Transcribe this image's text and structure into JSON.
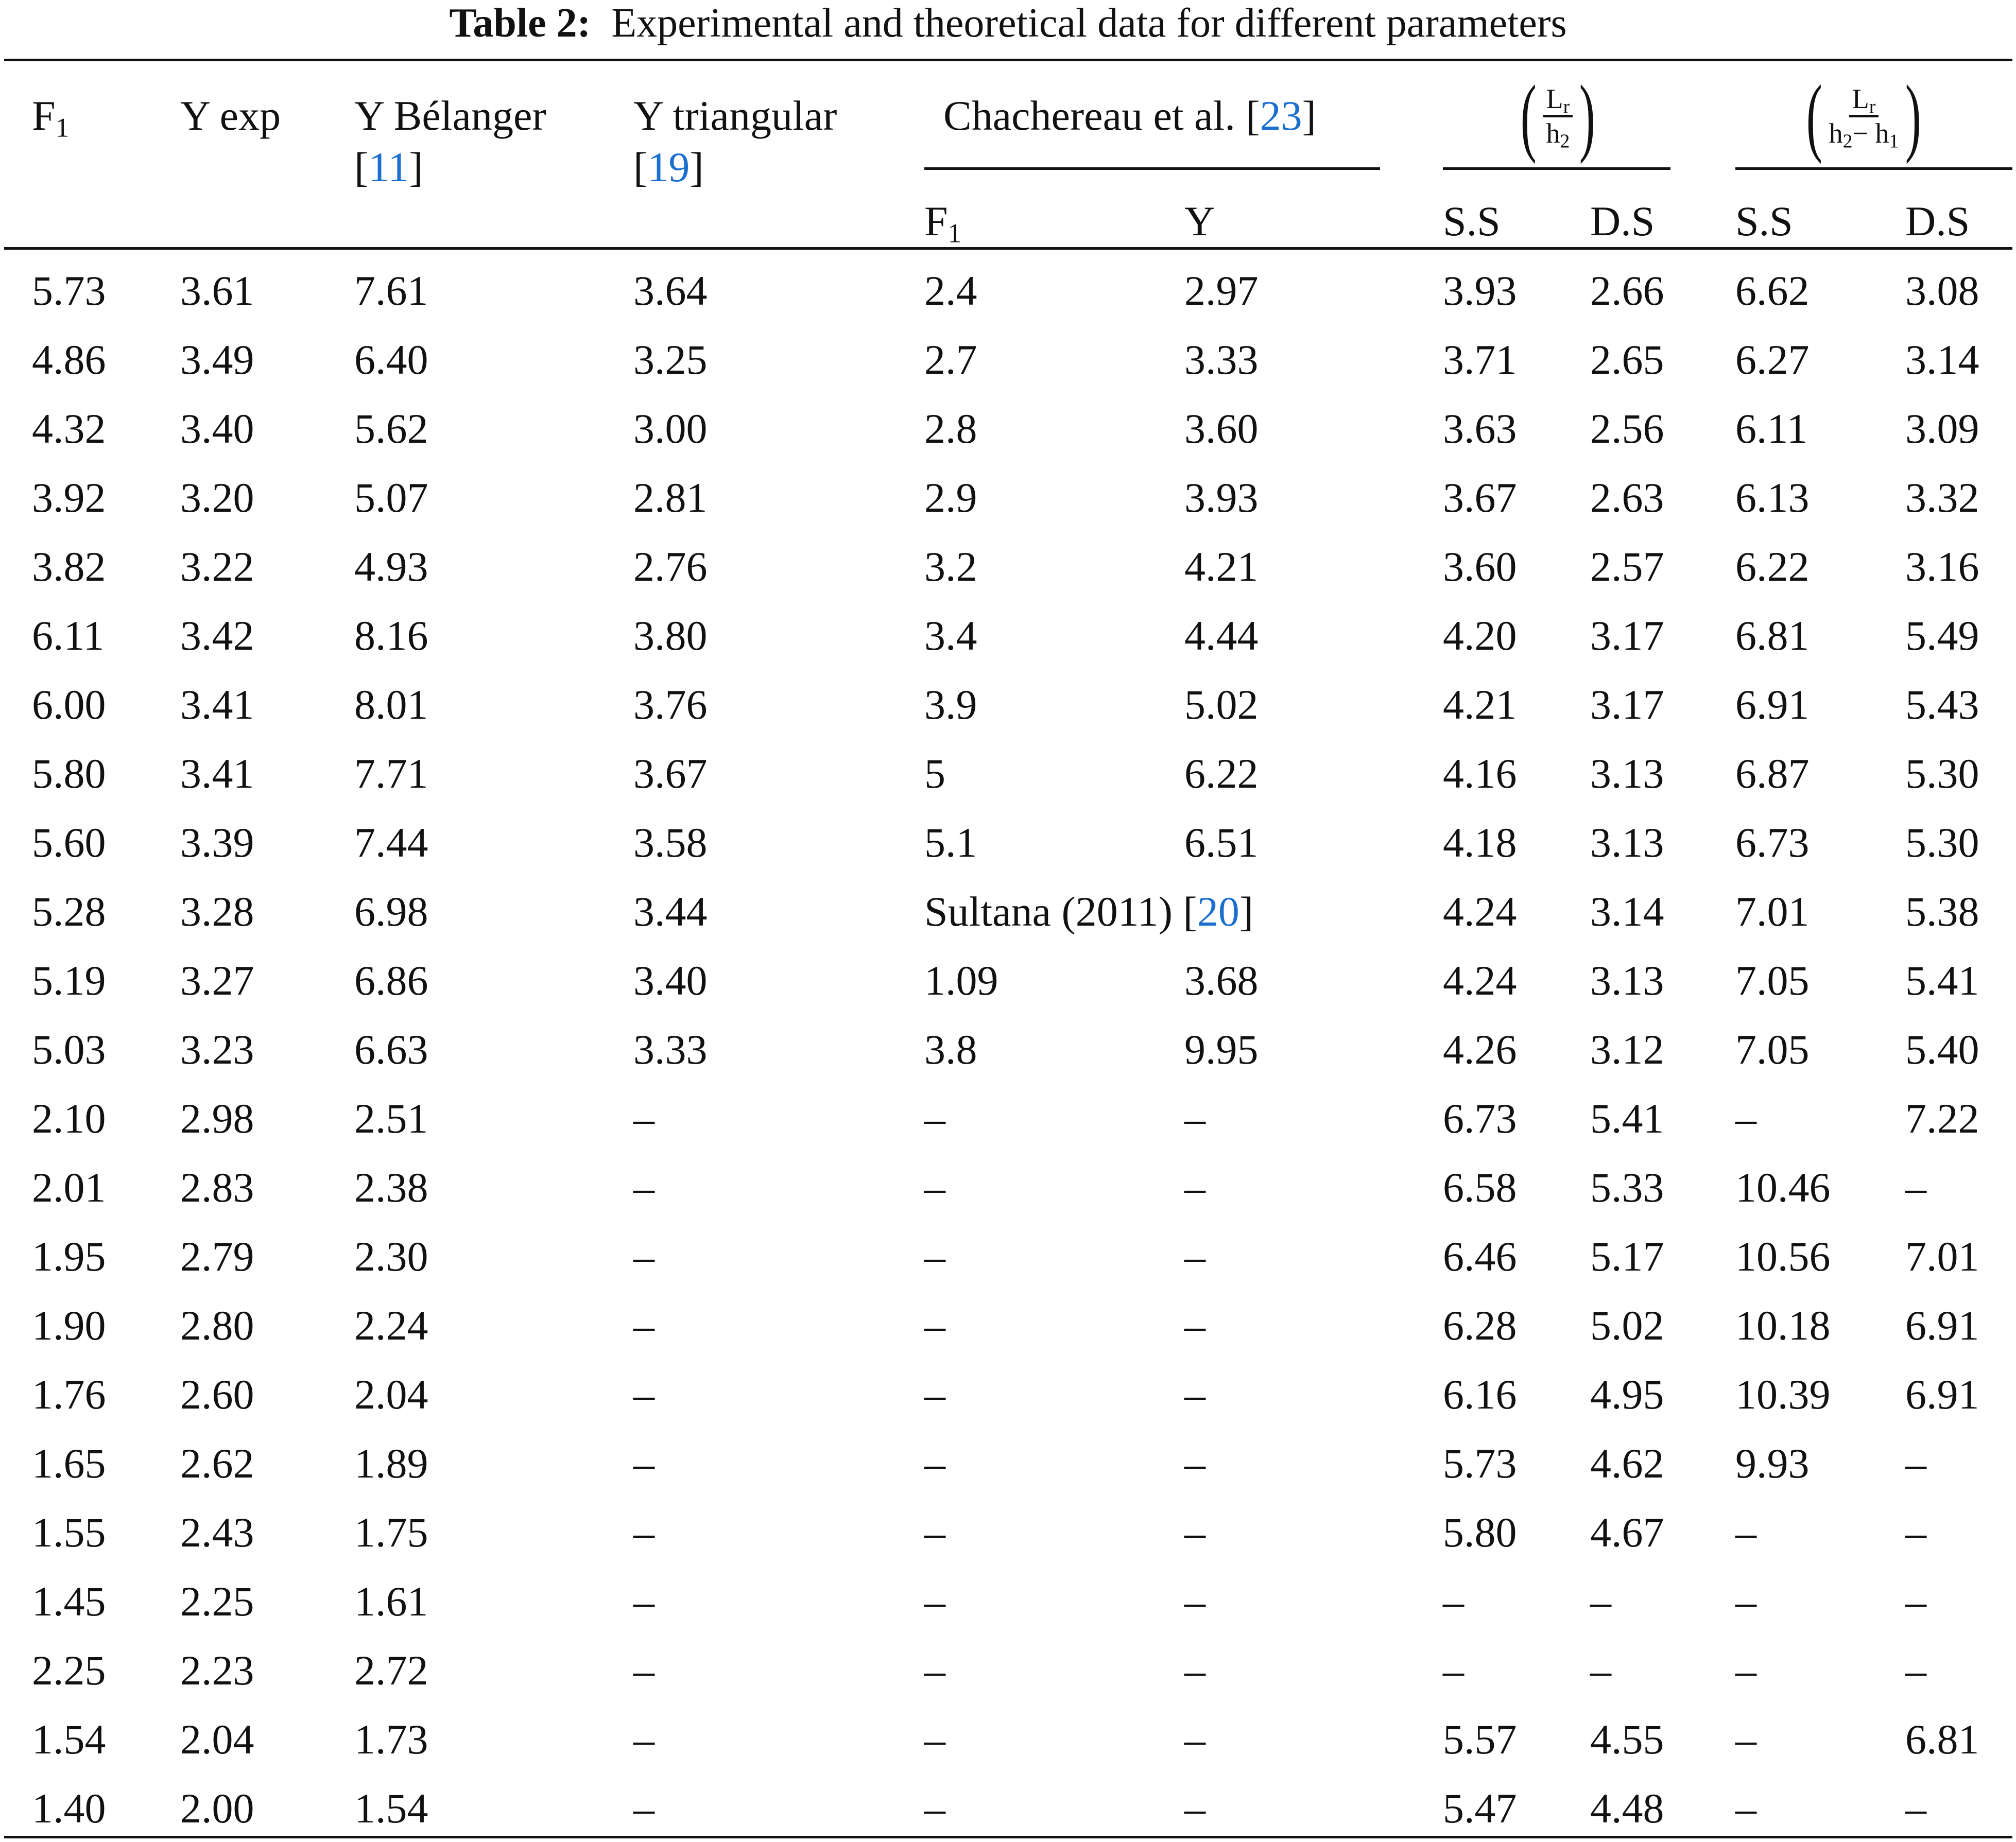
{
  "caption": {
    "label": "Table 2:",
    "text": "Experimental and theoretical data for different parameters"
  },
  "header": {
    "f1": "F",
    "f1_sub": "1",
    "y_exp": "Y exp",
    "y_belanger": "Y Bélanger",
    "y_belanger_ref": "11",
    "y_triangular": "Y triangular",
    "y_triangular_ref": "19",
    "chachereau": "Chachereau et al.",
    "chachereau_ref": "23",
    "chachereau_f1": "F",
    "chachereau_f1_sub": "1",
    "chachereau_y": "Y",
    "lr_h2": {
      "num": "L",
      "num_sub": "r",
      "den": "h",
      "den_sub": "2"
    },
    "lr_h2h1": {
      "num": "L",
      "num_sub": "r",
      "den_a": "h",
      "den_a_sub": "2",
      "minus": "− ",
      "den_b": "h",
      "den_b_sub": "1"
    },
    "ss": "S.S",
    "ds": "D.S"
  },
  "sultana": {
    "text": "Sultana (2011)",
    "ref": "20"
  },
  "citation_color": "#1a6fcf",
  "rows": [
    [
      "5.73",
      "3.61",
      "7.61",
      "3.64",
      "2.4",
      "2.97",
      "3.93",
      "2.66",
      "6.62",
      "3.08"
    ],
    [
      "4.86",
      "3.49",
      "6.40",
      "3.25",
      "2.7",
      "3.33",
      "3.71",
      "2.65",
      "6.27",
      "3.14"
    ],
    [
      "4.32",
      "3.40",
      "5.62",
      "3.00",
      "2.8",
      "3.60",
      "3.63",
      "2.56",
      "6.11",
      "3.09"
    ],
    [
      "3.92",
      "3.20",
      "5.07",
      "2.81",
      "2.9",
      "3.93",
      "3.67",
      "2.63",
      "6.13",
      "3.32"
    ],
    [
      "3.82",
      "3.22",
      "4.93",
      "2.76",
      "3.2",
      "4.21",
      "3.60",
      "2.57",
      "6.22",
      "3.16"
    ],
    [
      "6.11",
      "3.42",
      "8.16",
      "3.80",
      "3.4",
      "4.44",
      "4.20",
      "3.17",
      "6.81",
      "5.49"
    ],
    [
      "6.00",
      "3.41",
      "8.01",
      "3.76",
      "3.9",
      "5.02",
      "4.21",
      "3.17",
      "6.91",
      "5.43"
    ],
    [
      "5.80",
      "3.41",
      "7.71",
      "3.67",
      "5",
      "6.22",
      "4.16",
      "3.13",
      "6.87",
      "5.30"
    ],
    [
      "5.60",
      "3.39",
      "7.44",
      "3.58",
      "5.1",
      "6.51",
      "4.18",
      "3.13",
      "6.73",
      "5.30"
    ],
    [
      "5.28",
      "3.28",
      "6.98",
      "3.44",
      null,
      null,
      "4.24",
      "3.14",
      "7.01",
      "5.38"
    ],
    [
      "5.19",
      "3.27",
      "6.86",
      "3.40",
      "1.09",
      "3.68",
      "4.24",
      "3.13",
      "7.05",
      "5.41"
    ],
    [
      "5.03",
      "3.23",
      "6.63",
      "3.33",
      "3.8",
      "9.95",
      "4.26",
      "3.12",
      "7.05",
      "5.40"
    ],
    [
      "2.10",
      "2.98",
      "2.51",
      "–",
      "–",
      "–",
      "6.73",
      "5.41",
      "–",
      "7.22"
    ],
    [
      "2.01",
      "2.83",
      "2.38",
      "–",
      "–",
      "–",
      "6.58",
      "5.33",
      "10.46",
      "–"
    ],
    [
      "1.95",
      "2.79",
      "2.30",
      "–",
      "–",
      "–",
      "6.46",
      "5.17",
      "10.56",
      "7.01"
    ],
    [
      "1.90",
      "2.80",
      "2.24",
      "–",
      "–",
      "–",
      "6.28",
      "5.02",
      "10.18",
      "6.91"
    ],
    [
      "1.76",
      "2.60",
      "2.04",
      "–",
      "–",
      "–",
      "6.16",
      "4.95",
      "10.39",
      "6.91"
    ],
    [
      "1.65",
      "2.62",
      "1.89",
      "–",
      "–",
      "–",
      "5.73",
      "4.62",
      "9.93",
      "–"
    ],
    [
      "1.55",
      "2.43",
      "1.75",
      "–",
      "–",
      "–",
      "5.80",
      "4.67",
      "–",
      "–"
    ],
    [
      "1.45",
      "2.25",
      "1.61",
      "–",
      "–",
      "–",
      "–",
      "–",
      "–",
      "–"
    ],
    [
      "2.25",
      "2.23",
      "2.72",
      "–",
      "–",
      "–",
      "–",
      "–",
      "–",
      "–"
    ],
    [
      "1.54",
      "2.04",
      "1.73",
      "–",
      "–",
      "–",
      "5.57",
      "4.55",
      "–",
      "6.81"
    ],
    [
      "1.40",
      "2.00",
      "1.54",
      "–",
      "–",
      "–",
      "5.47",
      "4.48",
      "–",
      "–"
    ]
  ]
}
